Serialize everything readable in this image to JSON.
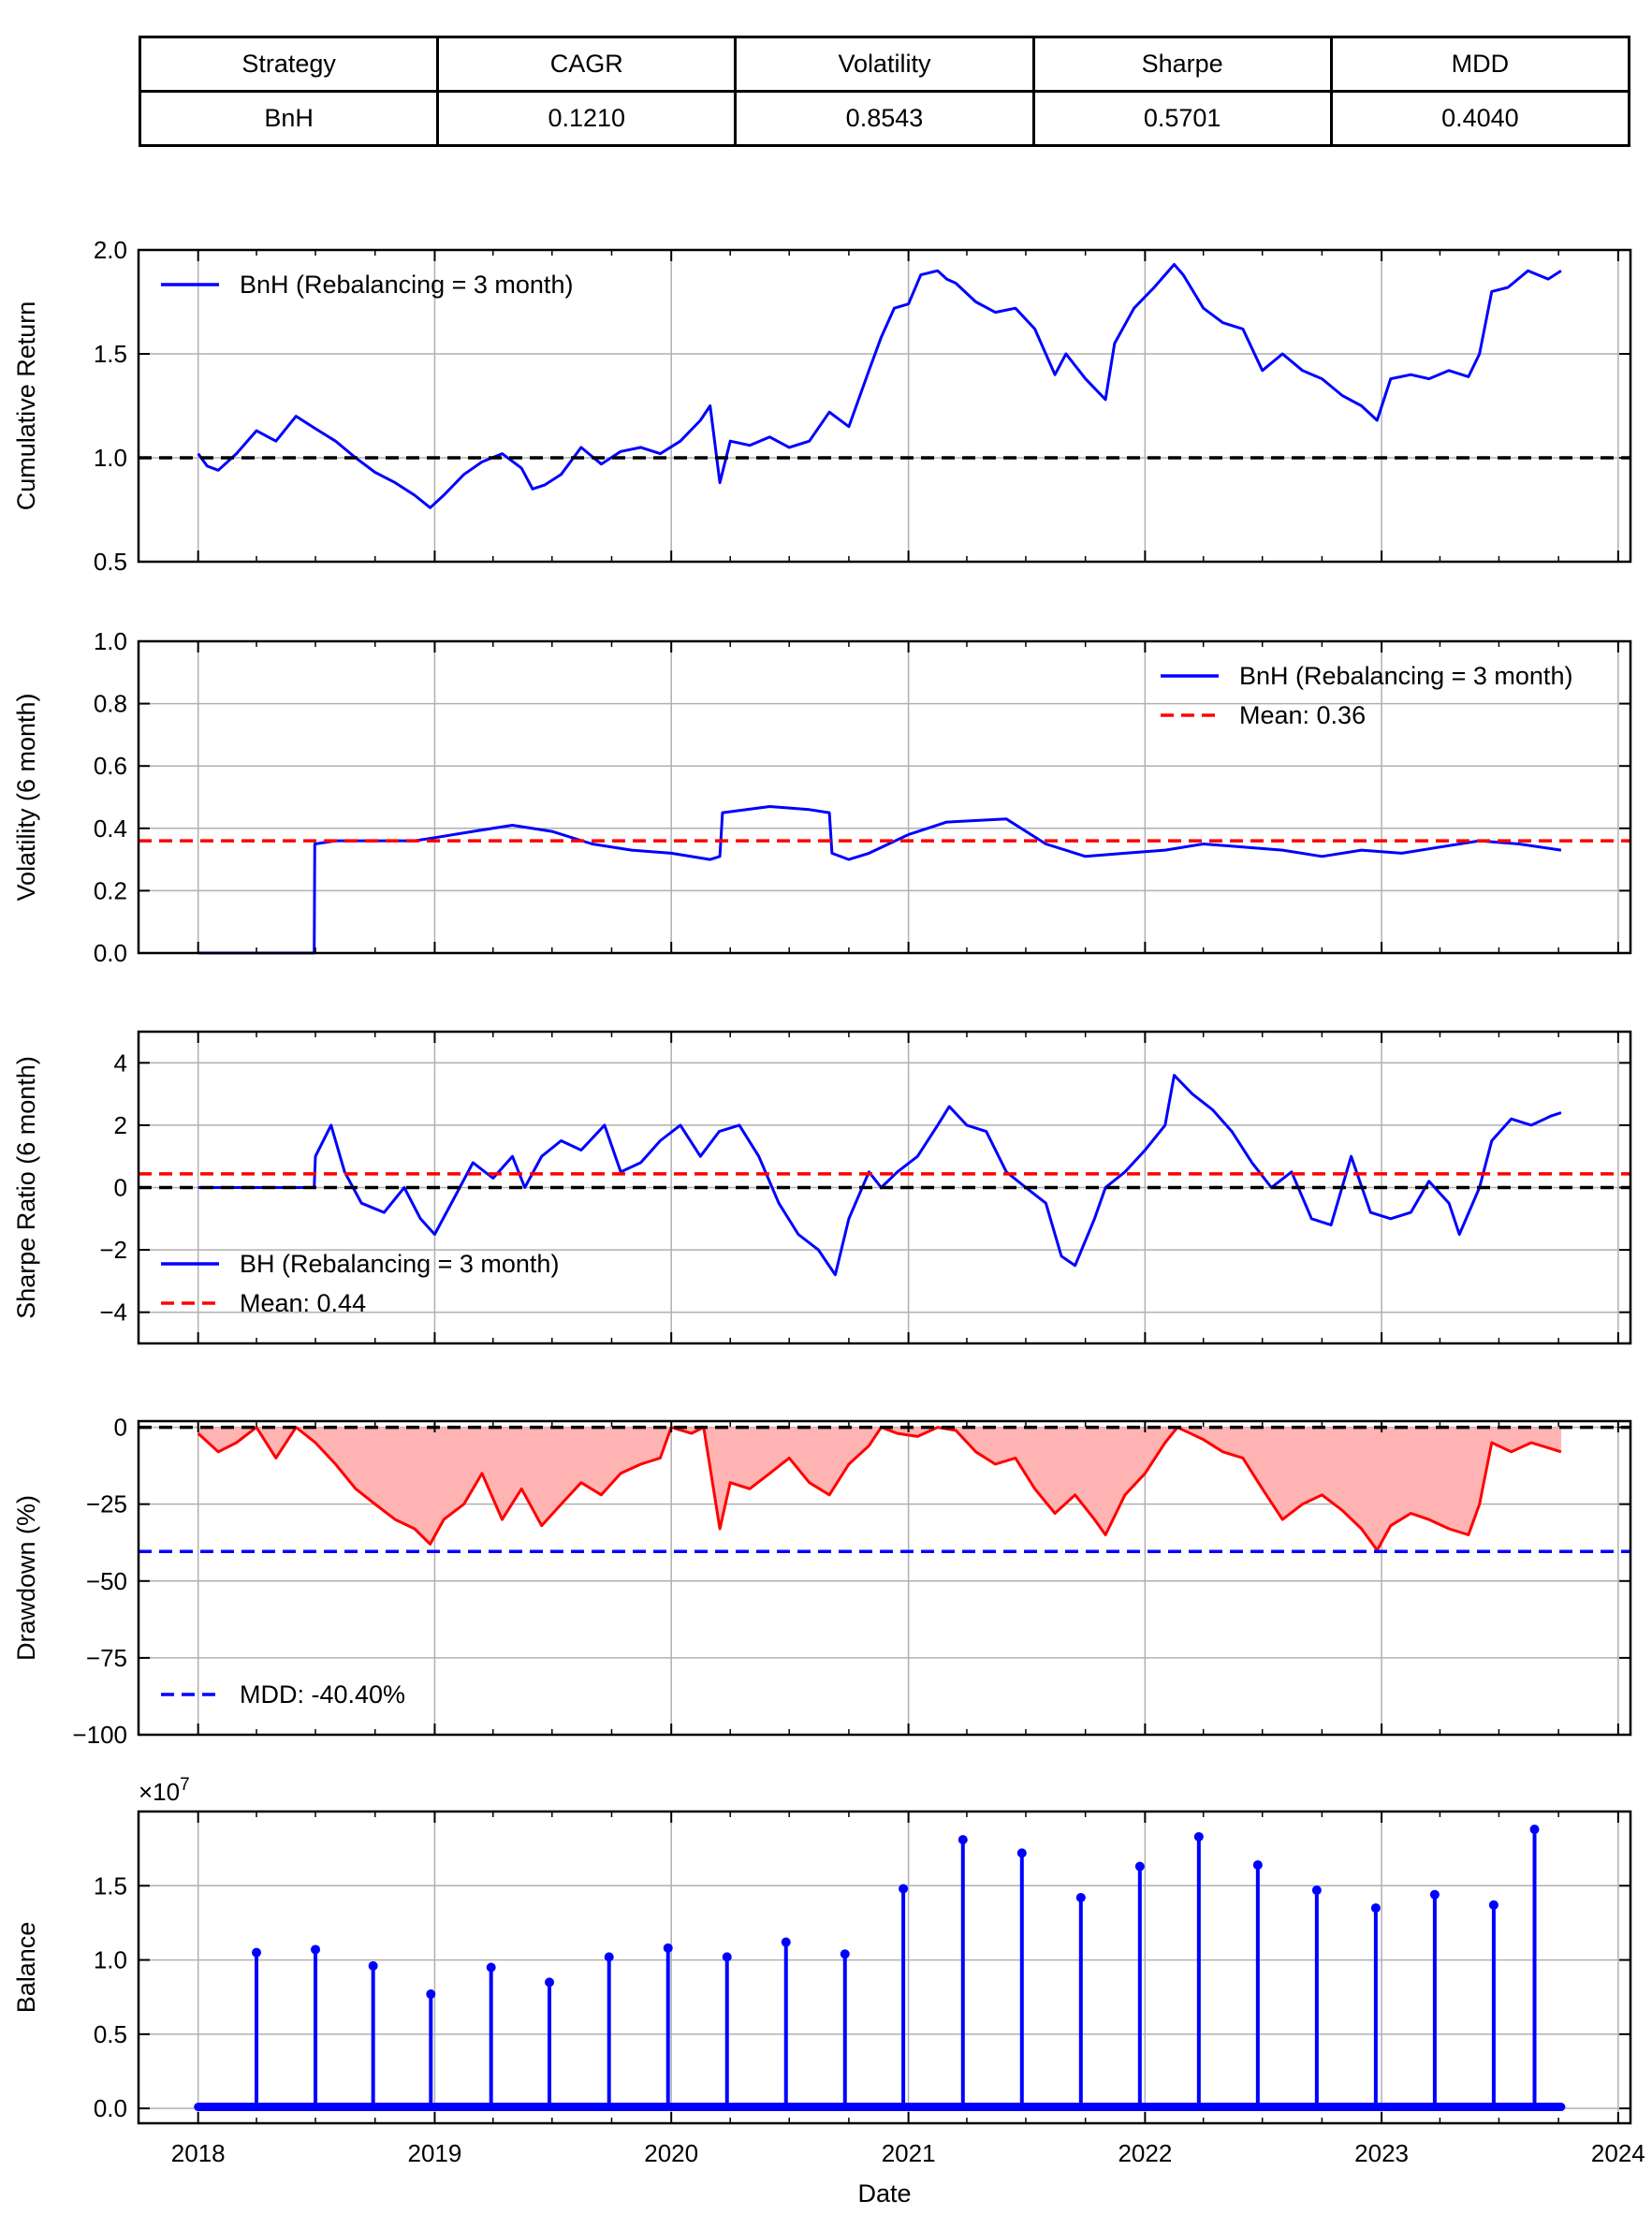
{
  "summary_table": {
    "headers": [
      "Strategy",
      "CAGR",
      "Volatility",
      "Sharpe",
      "MDD"
    ],
    "rows": [
      [
        "BnH",
        "0.1210",
        "0.8543",
        "0.5701",
        "0.4040"
      ]
    ]
  },
  "colors": {
    "series_blue": "#0000ff",
    "mean_red": "#ff0000",
    "ref_black": "#000000",
    "fill_red": "#ffb3b3",
    "grid": "#b0b0b0"
  },
  "x_axis": {
    "label": "Date",
    "range": [
      "2017-10-01",
      "2024-01-20"
    ],
    "ticks": [
      "2018",
      "2019",
      "2020",
      "2021",
      "2022",
      "2023",
      "2024"
    ]
  },
  "chart_data": [
    {
      "type": "line",
      "ylabel": "Cumulative Return",
      "ylim": [
        0.5,
        2.0
      ],
      "yticks": [
        "0.5",
        "1.0",
        "1.5",
        "2.0"
      ],
      "grid": true,
      "legend": {
        "placement": "top-left",
        "entries": [
          "BnH (Rebalancing = 3 month)"
        ]
      },
      "reference_lines": [
        {
          "y": 1.0,
          "style": "dashed",
          "color": "black"
        }
      ],
      "series": [
        {
          "name": "BnH (Rebalancing = 3 month)",
          "x": [
            "2018-01-01",
            "2018-01-15",
            "2018-02-01",
            "2018-03-01",
            "2018-04-01",
            "2018-05-01",
            "2018-06-01",
            "2018-07-01",
            "2018-08-01",
            "2018-09-01",
            "2018-10-01",
            "2018-11-01",
            "2018-12-01",
            "2018-12-25",
            "2019-01-15",
            "2019-02-15",
            "2019-03-15",
            "2019-04-15",
            "2019-05-15",
            "2019-06-01",
            "2019-06-20",
            "2019-07-15",
            "2019-08-15",
            "2019-09-15",
            "2019-10-15",
            "2019-11-15",
            "2019-12-15",
            "2020-01-15",
            "2020-02-15",
            "2020-03-01",
            "2020-03-16",
            "2020-04-01",
            "2020-05-01",
            "2020-06-01",
            "2020-07-01",
            "2020-08-01",
            "2020-09-01",
            "2020-10-01",
            "2020-11-01",
            "2020-11-20",
            "2020-12-10",
            "2021-01-01",
            "2021-01-20",
            "2021-02-15",
            "2021-03-01",
            "2021-03-15",
            "2021-04-15",
            "2021-05-15",
            "2021-06-15",
            "2021-07-15",
            "2021-08-15",
            "2021-09-01",
            "2021-10-01",
            "2021-11-01",
            "2021-11-15",
            "2021-12-15",
            "2022-01-15",
            "2022-02-15",
            "2022-03-01",
            "2022-04-01",
            "2022-05-01",
            "2022-06-01",
            "2022-07-01",
            "2022-08-01",
            "2022-09-01",
            "2022-10-01",
            "2022-11-01",
            "2022-12-01",
            "2022-12-25",
            "2023-01-15",
            "2023-02-15",
            "2023-03-15",
            "2023-04-15",
            "2023-05-15",
            "2023-06-01",
            "2023-06-20",
            "2023-07-15",
            "2023-08-15",
            "2023-09-15",
            "2023-10-05"
          ],
          "values": [
            1.02,
            0.96,
            0.94,
            1.02,
            1.13,
            1.08,
            1.2,
            1.14,
            1.08,
            1.0,
            0.93,
            0.88,
            0.82,
            0.76,
            0.82,
            0.92,
            0.98,
            1.02,
            0.95,
            0.85,
            0.87,
            0.92,
            1.05,
            0.97,
            1.03,
            1.05,
            1.02,
            1.08,
            1.18,
            1.25,
            0.88,
            1.08,
            1.06,
            1.1,
            1.05,
            1.08,
            1.22,
            1.15,
            1.42,
            1.58,
            1.72,
            1.74,
            1.88,
            1.9,
            1.86,
            1.84,
            1.75,
            1.7,
            1.72,
            1.62,
            1.4,
            1.5,
            1.38,
            1.28,
            1.55,
            1.72,
            1.82,
            1.93,
            1.88,
            1.72,
            1.65,
            1.62,
            1.42,
            1.5,
            1.42,
            1.38,
            1.3,
            1.25,
            1.18,
            1.38,
            1.4,
            1.38,
            1.42,
            1.39,
            1.5,
            1.8,
            1.82,
            1.9,
            1.86,
            1.9
          ]
        }
      ]
    },
    {
      "type": "line",
      "ylabel": "Volatility (6 month)",
      "ylim": [
        0.0,
        1.0
      ],
      "yticks": [
        "0.0",
        "0.2",
        "0.4",
        "0.6",
        "0.8",
        "1.0"
      ],
      "grid": true,
      "legend": {
        "placement": "top-right",
        "entries": [
          "BnH (Rebalancing = 3 month)",
          "Mean: 0.36"
        ]
      },
      "reference_lines": [
        {
          "y": 0.36,
          "style": "dashed",
          "color": "red",
          "label": "Mean: 0.36"
        }
      ],
      "series": [
        {
          "name": "BnH (Rebalancing = 3 month)",
          "x": [
            "2018-01-01",
            "2018-06-29",
            "2018-06-30",
            "2018-08-01",
            "2018-10-01",
            "2018-12-01",
            "2019-01-01",
            "2019-03-01",
            "2019-05-01",
            "2019-07-01",
            "2019-09-01",
            "2019-11-01",
            "2020-01-01",
            "2020-03-01",
            "2020-03-16",
            "2020-03-20",
            "2020-06-01",
            "2020-08-01",
            "2020-09-01",
            "2020-09-05",
            "2020-10-01",
            "2020-11-01",
            "2021-01-01",
            "2021-03-01",
            "2021-06-01",
            "2021-08-01",
            "2021-10-01",
            "2021-12-01",
            "2022-02-01",
            "2022-04-01",
            "2022-06-01",
            "2022-08-01",
            "2022-10-01",
            "2022-12-01",
            "2023-02-01",
            "2023-04-01",
            "2023-06-01",
            "2023-08-01",
            "2023-10-05"
          ],
          "values": [
            0.0,
            0.0,
            0.35,
            0.36,
            0.36,
            0.36,
            0.37,
            0.39,
            0.41,
            0.39,
            0.35,
            0.33,
            0.32,
            0.3,
            0.31,
            0.45,
            0.47,
            0.46,
            0.45,
            0.32,
            0.3,
            0.32,
            0.38,
            0.42,
            0.43,
            0.35,
            0.31,
            0.32,
            0.33,
            0.35,
            0.34,
            0.33,
            0.31,
            0.33,
            0.32,
            0.34,
            0.36,
            0.35,
            0.33
          ]
        }
      ]
    },
    {
      "type": "line",
      "ylabel": "Sharpe Ratio (6 month)",
      "ylim": [
        -5,
        5
      ],
      "yticks": [
        "−4",
        "−2",
        "0",
        "2",
        "4"
      ],
      "grid": true,
      "legend": {
        "placement": "bottom-left",
        "entries": [
          "BH (Rebalancing = 3 month)",
          "Mean: 0.44"
        ]
      },
      "reference_lines": [
        {
          "y": 0.44,
          "style": "dashed",
          "color": "red",
          "label": "Mean: 0.44"
        },
        {
          "y": 0.0,
          "style": "dashed",
          "color": "black"
        }
      ],
      "series": [
        {
          "name": "BH (Rebalancing = 3 month)",
          "x": [
            "2018-01-01",
            "2018-06-29",
            "2018-07-01",
            "2018-07-25",
            "2018-08-15",
            "2018-09-10",
            "2018-10-15",
            "2018-11-15",
            "2018-12-10",
            "2019-01-01",
            "2019-02-01",
            "2019-03-01",
            "2019-04-01",
            "2019-05-01",
            "2019-05-20",
            "2019-06-15",
            "2019-07-15",
            "2019-08-15",
            "2019-09-20",
            "2019-10-15",
            "2019-11-15",
            "2019-12-15",
            "2020-01-15",
            "2020-02-15",
            "2020-03-15",
            "2020-04-15",
            "2020-05-15",
            "2020-06-15",
            "2020-07-15",
            "2020-08-15",
            "2020-09-10",
            "2020-10-01",
            "2020-11-01",
            "2020-11-20",
            "2020-12-15",
            "2021-01-15",
            "2021-02-15",
            "2021-03-05",
            "2021-04-01",
            "2021-05-01",
            "2021-06-01",
            "2021-07-01",
            "2021-08-01",
            "2021-08-25",
            "2021-09-15",
            "2021-10-15",
            "2021-11-01",
            "2021-12-01",
            "2022-01-01",
            "2022-02-01",
            "2022-02-15",
            "2022-03-15",
            "2022-04-15",
            "2022-05-15",
            "2022-06-15",
            "2022-07-15",
            "2022-08-15",
            "2022-09-15",
            "2022-10-15",
            "2022-11-15",
            "2022-12-15",
            "2023-01-15",
            "2023-02-15",
            "2023-03-15",
            "2023-04-15",
            "2023-05-01",
            "2023-06-01",
            "2023-06-20",
            "2023-07-20",
            "2023-08-20",
            "2023-09-20",
            "2023-10-05"
          ],
          "values": [
            0.0,
            0.0,
            1.0,
            2.0,
            0.5,
            -0.5,
            -0.8,
            0.0,
            -1.0,
            -1.5,
            -0.3,
            0.8,
            0.3,
            1.0,
            0.0,
            1.0,
            1.5,
            1.2,
            2.0,
            0.5,
            0.8,
            1.5,
            2.0,
            1.0,
            1.8,
            2.0,
            1.0,
            -0.5,
            -1.5,
            -2.0,
            -2.8,
            -1.0,
            0.5,
            0.0,
            0.5,
            1.0,
            2.0,
            2.6,
            2.0,
            1.8,
            0.5,
            0.0,
            -0.5,
            -2.2,
            -2.5,
            -1.0,
            0.0,
            0.5,
            1.2,
            2.0,
            3.6,
            3.0,
            2.5,
            1.8,
            0.8,
            0.0,
            0.5,
            -1.0,
            -1.2,
            1.0,
            -0.8,
            -1.0,
            -0.8,
            0.2,
            -0.5,
            -1.5,
            0.0,
            1.5,
            2.2,
            2.0,
            2.3,
            2.4
          ]
        }
      ]
    },
    {
      "type": "area",
      "ylabel": "Drawdown (%)",
      "ylim": [
        -100,
        2
      ],
      "yticks": [
        "−100",
        "−75",
        "−50",
        "−25",
        "0"
      ],
      "grid": true,
      "legend": {
        "placement": "bottom-left",
        "entries": [
          "MDD: -40.40%"
        ]
      },
      "reference_lines": [
        {
          "y": -40.4,
          "style": "dashed",
          "color": "blue",
          "label": "MDD: -40.40%"
        },
        {
          "y": 0.0,
          "style": "dashed",
          "color": "black"
        }
      ],
      "series": [
        {
          "name": "Drawdown",
          "x": [
            "2018-01-01",
            "2018-02-01",
            "2018-03-01",
            "2018-04-01",
            "2018-05-01",
            "2018-06-01",
            "2018-07-01",
            "2018-08-01",
            "2018-09-01",
            "2018-10-01",
            "2018-11-01",
            "2018-12-01",
            "2018-12-25",
            "2019-01-15",
            "2019-02-15",
            "2019-03-15",
            "2019-04-15",
            "2019-05-15",
            "2019-06-15",
            "2019-07-15",
            "2019-08-15",
            "2019-09-15",
            "2019-10-15",
            "2019-11-15",
            "2019-12-15",
            "2020-01-01",
            "2020-02-01",
            "2020-02-20",
            "2020-03-16",
            "2020-04-01",
            "2020-05-01",
            "2020-06-01",
            "2020-07-01",
            "2020-08-01",
            "2020-09-01",
            "2020-10-01",
            "2020-11-01",
            "2020-11-20",
            "2020-12-15",
            "2021-01-15",
            "2021-02-15",
            "2021-03-15",
            "2021-04-15",
            "2021-05-15",
            "2021-06-15",
            "2021-07-15",
            "2021-08-15",
            "2021-09-15",
            "2021-10-15",
            "2021-11-01",
            "2021-12-01",
            "2022-01-01",
            "2022-02-01",
            "2022-02-20",
            "2022-04-01",
            "2022-05-01",
            "2022-06-01",
            "2022-07-01",
            "2022-08-01",
            "2022-09-01",
            "2022-10-01",
            "2022-11-01",
            "2022-12-01",
            "2022-12-25",
            "2023-01-15",
            "2023-02-15",
            "2023-03-15",
            "2023-04-15",
            "2023-05-15",
            "2023-06-01",
            "2023-06-20",
            "2023-07-20",
            "2023-08-20",
            "2023-09-20",
            "2023-10-05"
          ],
          "values": [
            -2,
            -8,
            -5,
            0,
            -10,
            0,
            -5,
            -12,
            -20,
            -25,
            -30,
            -33,
            -38,
            -30,
            -25,
            -15,
            -30,
            -20,
            -32,
            -25,
            -18,
            -22,
            -15,
            -12,
            -10,
            0,
            -2,
            0,
            -33,
            -18,
            -20,
            -15,
            -10,
            -18,
            -22,
            -12,
            -6,
            0,
            -2,
            -3,
            0,
            -1,
            -8,
            -12,
            -10,
            -20,
            -28,
            -22,
            -30,
            -35,
            -22,
            -15,
            -5,
            0,
            -4,
            -8,
            -10,
            -20,
            -30,
            -25,
            -22,
            -27,
            -33,
            -40,
            -32,
            -28,
            -30,
            -33,
            -35,
            -25,
            -5,
            -8,
            -5,
            -7,
            -8
          ]
        }
      ]
    },
    {
      "type": "bar",
      "ylabel": "Balance",
      "ylim": [
        -0.1,
        2.0
      ],
      "yticks": [
        "0.0",
        "0.5",
        "1.0",
        "1.5"
      ],
      "scale_label": "×10^7",
      "grid": true,
      "baseline_value": 0.01,
      "series": [
        {
          "name": "Balance",
          "x": [
            "2018-04-01",
            "2018-07-01",
            "2018-09-28",
            "2018-12-26",
            "2019-03-29",
            "2019-06-27",
            "2019-09-27",
            "2019-12-27",
            "2020-03-27",
            "2020-06-26",
            "2020-09-25",
            "2020-12-24",
            "2021-03-26",
            "2021-06-25",
            "2021-09-24",
            "2021-12-24",
            "2022-03-25",
            "2022-06-24",
            "2022-09-23",
            "2022-12-23",
            "2023-03-24",
            "2023-06-23",
            "2023-08-25"
          ],
          "values": [
            1.05,
            1.07,
            0.96,
            0.77,
            0.95,
            0.85,
            1.02,
            1.08,
            1.02,
            1.12,
            1.04,
            1.48,
            1.81,
            1.72,
            1.42,
            1.63,
            1.83,
            1.64,
            1.47,
            1.35,
            1.44,
            1.37,
            1.88
          ]
        }
      ]
    }
  ]
}
